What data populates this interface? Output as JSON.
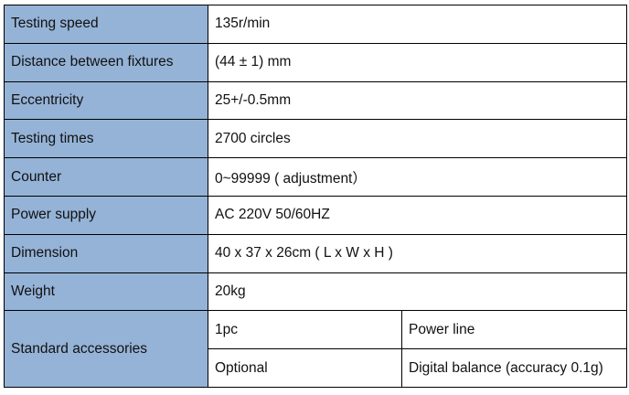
{
  "accent_color": "#95b3d7",
  "rows": [
    {
      "label": "Testing speed",
      "value": "135r/min"
    },
    {
      "label": "Distance between fixtures",
      "value": "(44 ± 1) mm"
    },
    {
      "label": "Eccentricity",
      "value": "25+/-0.5mm"
    },
    {
      "label": "Testing times",
      "value": "2700 circles"
    },
    {
      "label": "Counter",
      "value": "0~99999 ( adjustment）"
    },
    {
      "label": "Power supply",
      "value": "AC 220V 50/60HZ"
    },
    {
      "label": "Dimension",
      "value": "40 x 37 x 26cm ( L x W x H )"
    },
    {
      "label": "Weight",
      "value": "20kg"
    }
  ],
  "accessories": {
    "label": "Standard accessories",
    "items": [
      {
        "type": "1pc",
        "item": "Power line"
      },
      {
        "type": "Optional",
        "item": "Digital balance (accuracy 0.1g)"
      }
    ]
  }
}
